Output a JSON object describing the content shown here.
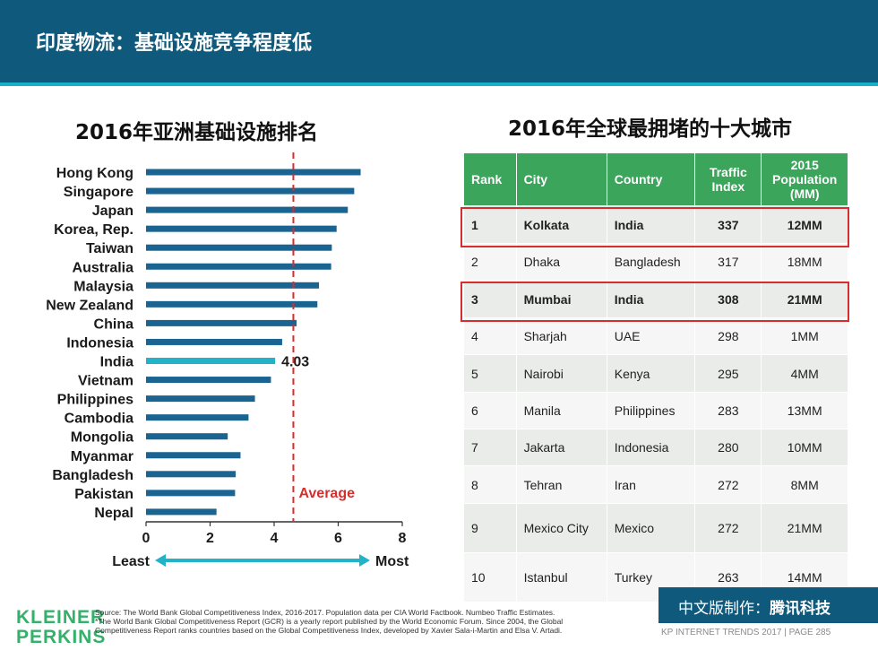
{
  "header": {
    "title": "印度物流：基础设施竞争程度低"
  },
  "left_panel": {
    "title": "2016年亚洲基础设施排名"
  },
  "right_panel": {
    "title": "2016年全球最拥堵的十大城市"
  },
  "chart_data": {
    "type": "bar",
    "orientation": "horizontal",
    "title": "2016年亚洲基础设施排名",
    "categories": [
      "Hong Kong",
      "Singapore",
      "Japan",
      "Korea, Rep.",
      "Taiwan",
      "Australia",
      "Malaysia",
      "New Zealand",
      "China",
      "Indonesia",
      "India",
      "Vietnam",
      "Philippines",
      "Cambodia",
      "Mongolia",
      "Myanmar",
      "Bangladesh",
      "Pakistan",
      "Nepal"
    ],
    "values": [
      6.7,
      6.5,
      6.3,
      5.95,
      5.8,
      5.78,
      5.4,
      5.35,
      4.7,
      4.25,
      4.03,
      3.9,
      3.4,
      3.2,
      2.55,
      2.95,
      2.8,
      2.78,
      2.2
    ],
    "highlight_category": "India",
    "highlight_label": "4.03",
    "average_value": 4.6,
    "average_label": "Average",
    "xlim": [
      0,
      8
    ],
    "xticks": [
      "0",
      "2",
      "4",
      "6",
      "8"
    ],
    "x_arrow_left_label": "Least",
    "x_arrow_right_label": "Most",
    "colors": {
      "bar": "#1a6491",
      "highlight": "#22b3c9",
      "average": "#d62d2d",
      "arrow": "#22b3c9"
    }
  },
  "table": {
    "headers": [
      "Rank",
      "City",
      "Country",
      "Traffic Index",
      "2015 Population (MM)"
    ],
    "rows": [
      {
        "rank": "1",
        "city": "Kolkata",
        "country": "India",
        "traffic": "337",
        "population": "12MM"
      },
      {
        "rank": "2",
        "city": "Dhaka",
        "country": "Bangladesh",
        "traffic": "317",
        "population": "18MM"
      },
      {
        "rank": "3",
        "city": "Mumbai",
        "country": "India",
        "traffic": "308",
        "population": "21MM"
      },
      {
        "rank": "4",
        "city": "Sharjah",
        "country": "UAE",
        "traffic": "298",
        "population": "1MM"
      },
      {
        "rank": "5",
        "city": "Nairobi",
        "country": "Kenya",
        "traffic": "295",
        "population": "4MM"
      },
      {
        "rank": "6",
        "city": "Manila",
        "country": "Philippines",
        "traffic": "283",
        "population": "13MM"
      },
      {
        "rank": "7",
        "city": "Jakarta",
        "country": "Indonesia",
        "traffic": "280",
        "population": "10MM"
      },
      {
        "rank": "8",
        "city": "Tehran",
        "country": "Iran",
        "traffic": "272",
        "population": "8MM"
      },
      {
        "rank": "9",
        "city": "Mexico City",
        "country": "Mexico",
        "traffic": "272",
        "population": "21MM"
      },
      {
        "rank": "10",
        "city": "Istanbul",
        "country": "Turkey",
        "traffic": "263",
        "population": "14MM"
      }
    ],
    "header_color": "#3aa55b"
  },
  "footer": {
    "logo_line1": "KLEINER",
    "logo_line2": "PERKINS",
    "source_line1": "Source: The World Bank Global Competitiveness Index, 2016-2017. Population data per CIA World Factbook. Numbeo Traffic Estimates.",
    "source_line2": "*The World Bank Global Competitiveness Report (GCR) is a yearly report published by the World Economic Forum. Since 2004, the Global",
    "source_line3": "Competitiveness Report ranks countries based on the Global Competitiveness Index, developed by Xavier Sala-i-Martin and Elsa V. Artadi.",
    "banner_prefix": "中文版制作：",
    "banner_brand": "腾讯科技",
    "page_label": "KP INTERNET TRENDS 2017  |  PAGE 285"
  }
}
